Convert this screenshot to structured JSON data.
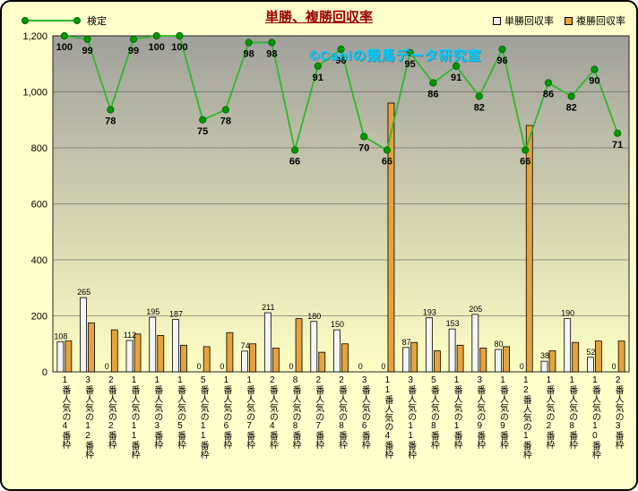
{
  "watermark": "©Caniの競馬データ研究室",
  "legend": {
    "line": "検定",
    "tansho": "単勝回収率",
    "fukusho": "複勝回収率"
  },
  "colors": {
    "background": "#ffffcc",
    "title": "#990000",
    "watermark": "#00ccff",
    "line": "#2db82d",
    "marker": "#009a00",
    "marker_edge": "#006600",
    "tansho_bar": "#f5f5f5",
    "fukusho_bar": "#e6a23c",
    "plot_top": "#a0a09c",
    "plot_bottom": "#ffffc4"
  },
  "chart_data": {
    "type": "bar",
    "title": "単勝、複勝回収率",
    "categories": [
      "1番人気の4番枠",
      "3番人気の12番枠",
      "2番人気の2番枠",
      "1番人気の11番枠",
      "1番人気の3番枠",
      "1番人気の5番枠",
      "5番人気の11番枠",
      "1番人気の6番枠",
      "1番人気の7番枠",
      "2番人気の4番枠",
      "8番人気の8番枠",
      "2番人気の7番枠",
      "2番人気の8番枠",
      "3番人気の6番枠",
      "11番人気の4番枠",
      "3番人気の11番枠",
      "5番人気の8番枠",
      "1番人気の1番枠",
      "3番人気の9番枠",
      "1番人気の9番枠",
      "12番人気の1番枠",
      "1番人気の2番枠",
      "1番人気の8番枠",
      "1番人気の10番枠",
      "2番人気の3番枠"
    ],
    "series": [
      {
        "name": "単勝回収率",
        "type": "bar",
        "values": [
          108,
          265,
          0,
          112,
          195,
          187,
          0,
          0,
          74,
          211,
          0,
          180,
          150,
          0,
          0,
          87,
          193,
          153,
          205,
          80,
          0,
          38,
          190,
          52,
          0
        ]
      },
      {
        "name": "複勝回収率",
        "type": "bar",
        "values": [
          110,
          175,
          150,
          135,
          130,
          95,
          90,
          140,
          100,
          85,
          190,
          70,
          100,
          0,
          960,
          105,
          75,
          95,
          85,
          90,
          880,
          75,
          105,
          110,
          110
        ]
      },
      {
        "name": "検定",
        "type": "line",
        "axis": "secondary",
        "values": [
          100,
          99,
          78,
          99,
          100,
          100,
          75,
          78,
          98,
          98,
          66,
          91,
          96,
          70,
          66,
          95,
          86,
          91,
          82,
          96,
          66,
          86,
          82,
          90,
          71
        ]
      }
    ],
    "y_axis": {
      "min": 0,
      "max": 1200,
      "step": 200,
      "ticks": [
        "0",
        "200",
        "400",
        "600",
        "800",
        "1,000",
        "1,200"
      ]
    },
    "secondary_axis": {
      "min": 0,
      "max": 100,
      "scale_to_primary": 12
    },
    "grid": true,
    "legend_position": "top"
  }
}
